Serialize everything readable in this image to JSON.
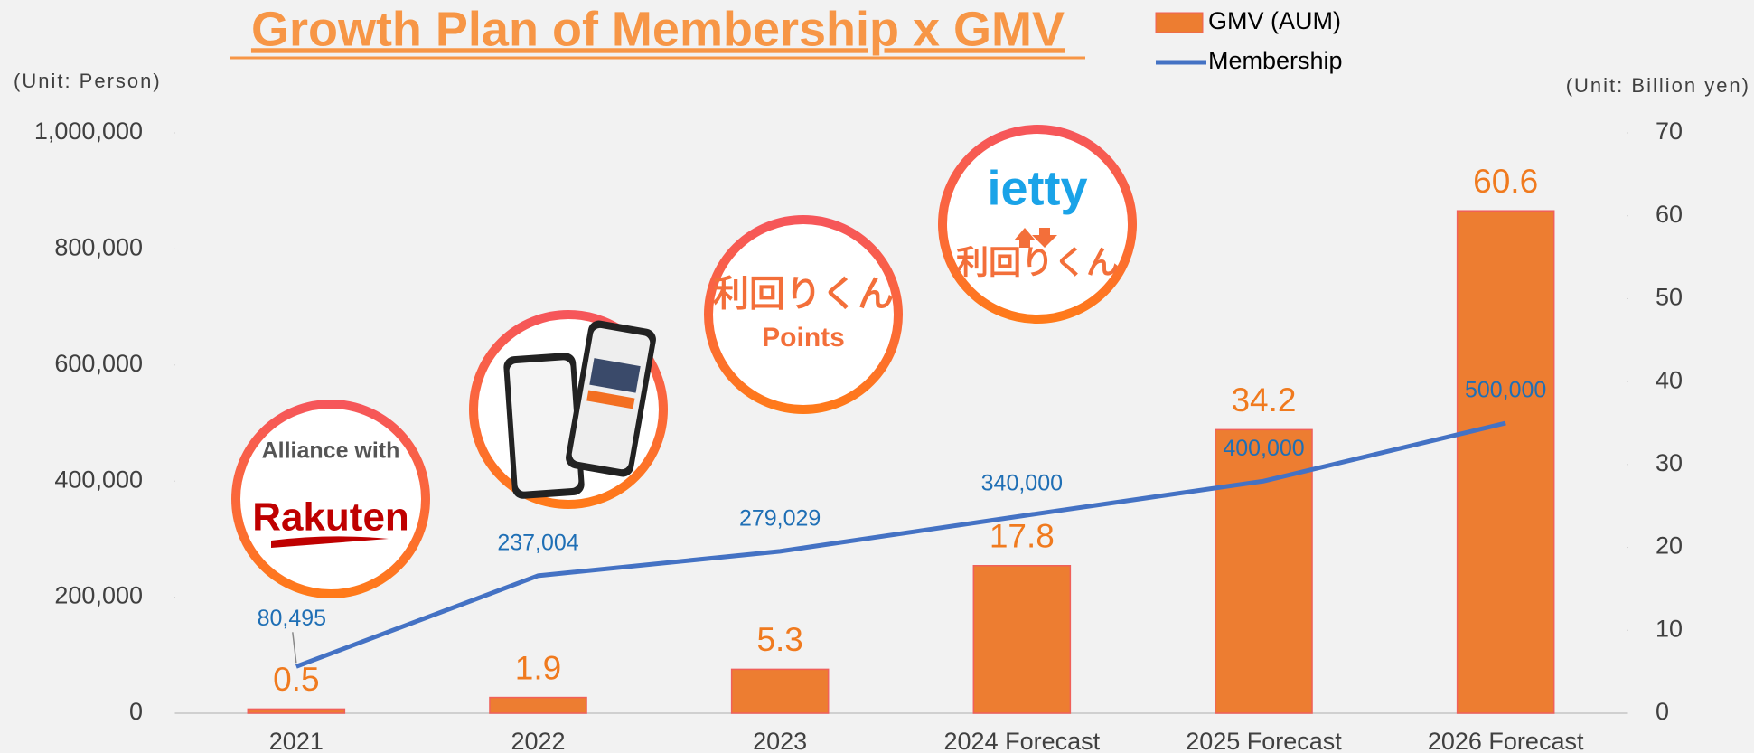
{
  "chart_data": {
    "type": "combo",
    "title": "Growth Plan of Membership x GMV",
    "y_label": "(Unit: Person)",
    "y2_label": "(Unit: Billion yen)",
    "categories": [
      "2021",
      "2022",
      "2023",
      "2024 Forecast",
      "2025 Forecast",
      "2026 Forecast"
    ],
    "series": [
      {
        "name": "GMV (AUM)",
        "type": "bar",
        "axis": "y2",
        "color": "#ED7D31",
        "label_color": "#F07A1E",
        "values": [
          0.5,
          1.9,
          5.3,
          17.8,
          34.2,
          60.6
        ]
      },
      {
        "name": "Membership",
        "type": "line",
        "color": "#4472C4",
        "label_color": "#1F6FB5",
        "values": [
          80495,
          237004,
          279029,
          340000,
          400000,
          500000
        ],
        "value_labels": [
          "80,495",
          "237,004",
          "279,029",
          "340,000",
          "400,000",
          "500,000"
        ]
      }
    ],
    "ylim": [
      0,
      1000000
    ],
    "yticks": [
      0,
      {
        "value": 200000,
        "label": "200,000"
      },
      {
        "value": 400000,
        "label": "400,000"
      },
      {
        "value": 600000,
        "label": "600,000"
      },
      {
        "value": 800000,
        "label": "800,000"
      },
      {
        "value": 1000000,
        "label": "1,000,000"
      }
    ],
    "y2lim": [
      0,
      70
    ],
    "y2ticks": [
      0,
      10,
      20,
      30,
      40,
      50,
      60,
      70
    ],
    "grid": false,
    "legend": "top",
    "annotations": [
      "Alliance with",
      "Rakuten",
      "利回りくん",
      "Points",
      "ietty",
      "利回りくん"
    ]
  }
}
